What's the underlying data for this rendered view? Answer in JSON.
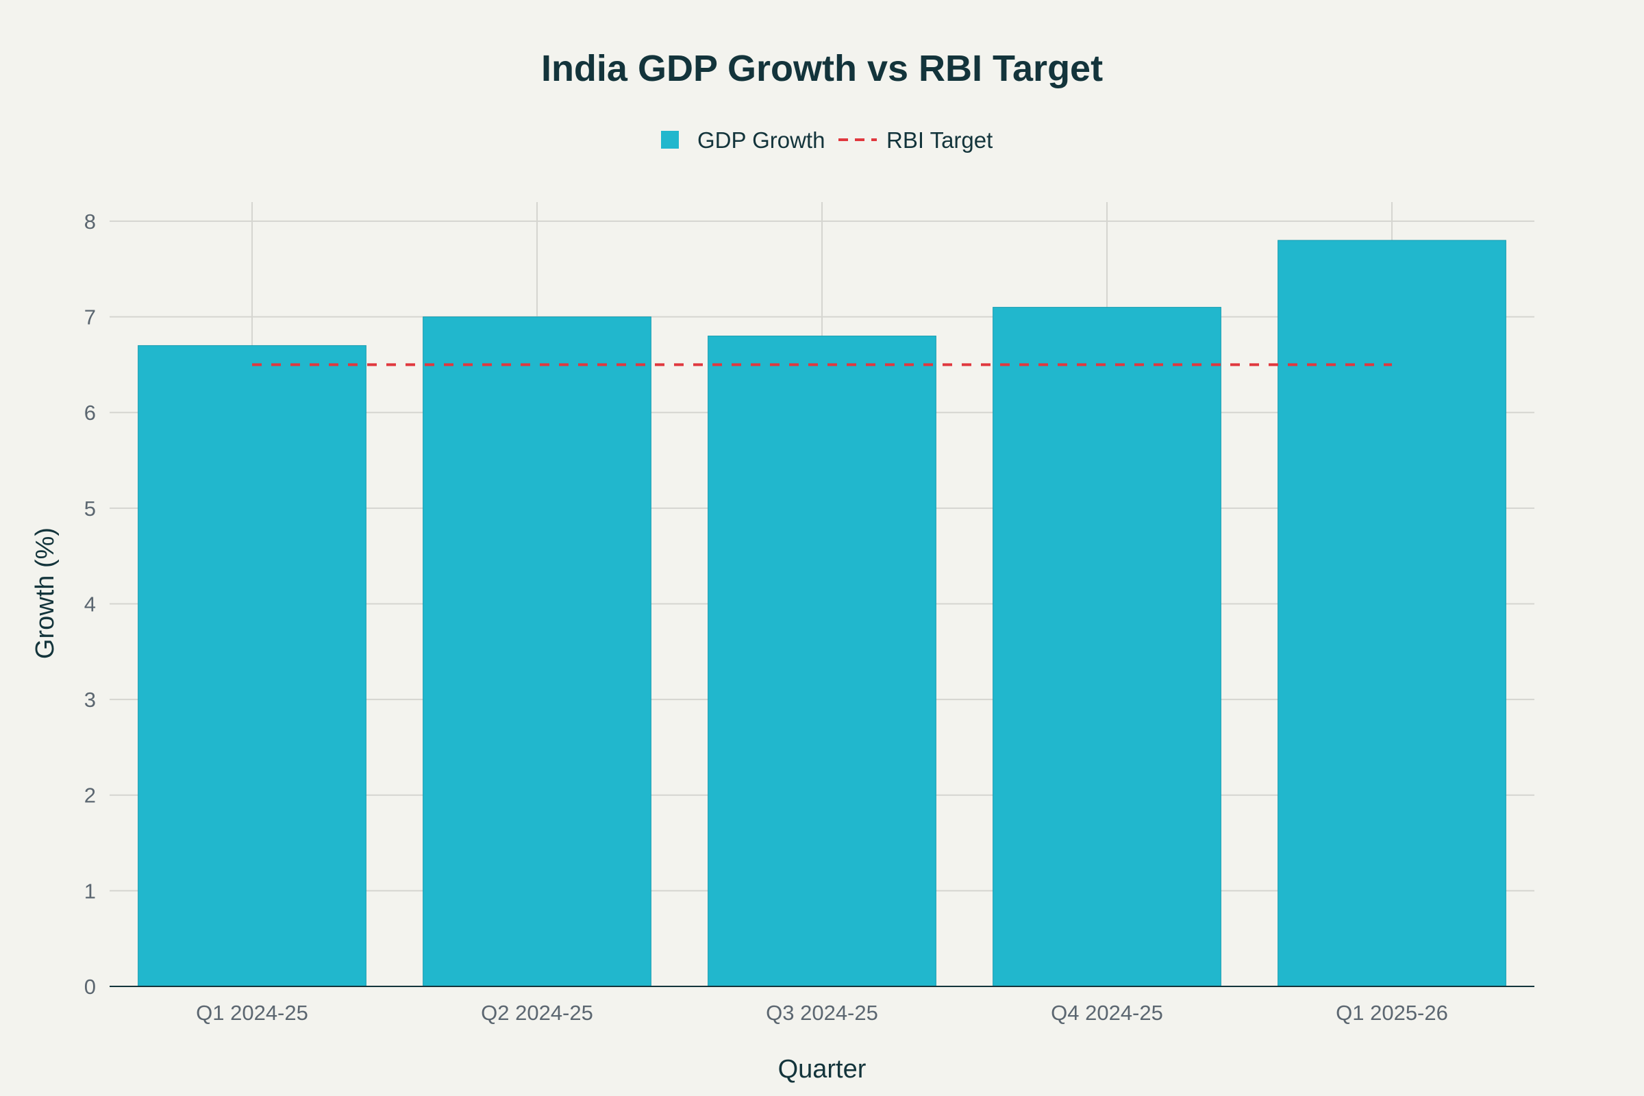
{
  "chart_data": {
    "type": "bar",
    "title": "India GDP Growth vs RBI Target",
    "xlabel": "Quarter",
    "ylabel": "Growth (%)",
    "categories": [
      "Q1 2024-25",
      "Q2 2024-25",
      "Q3 2024-25",
      "Q4 2024-25",
      "Q1 2025-26"
    ],
    "series": [
      {
        "name": "GDP Growth",
        "type": "bar",
        "color": "#21B7CD",
        "values": [
          6.7,
          7.0,
          6.8,
          7.1,
          7.8
        ]
      },
      {
        "name": "RBI Target",
        "type": "line",
        "style": "dashed",
        "color": "#E0383E",
        "values": [
          6.5,
          6.5,
          6.5,
          6.5,
          6.5
        ]
      }
    ],
    "ylim": [
      0,
      8.2
    ],
    "yticks": [
      0,
      1,
      2,
      3,
      4,
      5,
      6,
      7,
      8
    ],
    "grid": true,
    "legend_position": "top-center"
  }
}
